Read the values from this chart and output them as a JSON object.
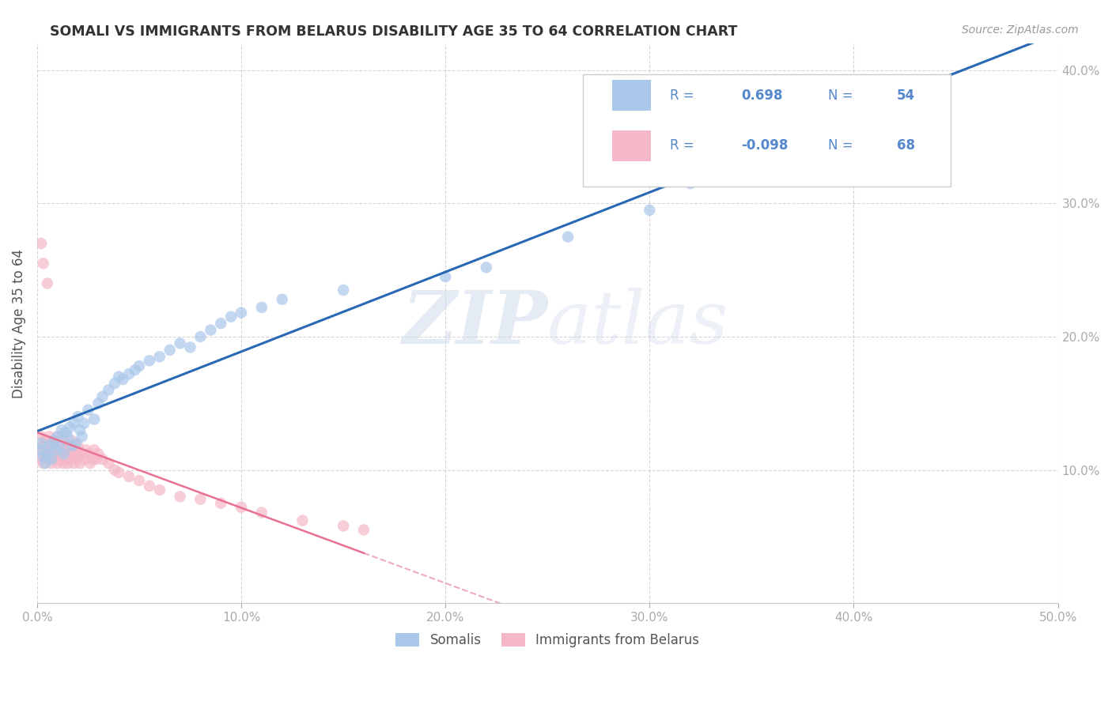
{
  "title": "SOMALI VS IMMIGRANTS FROM BELARUS DISABILITY AGE 35 TO 64 CORRELATION CHART",
  "source": "Source: ZipAtlas.com",
  "ylabel": "Disability Age 35 to 64",
  "xlim": [
    0.0,
    0.5
  ],
  "ylim": [
    0.0,
    0.42
  ],
  "xticks": [
    0.0,
    0.1,
    0.2,
    0.3,
    0.4,
    0.5
  ],
  "yticks": [
    0.0,
    0.1,
    0.2,
    0.3,
    0.4
  ],
  "xticklabels": [
    "0.0%",
    "10.0%",
    "20.0%",
    "30.0%",
    "40.0%",
    "50.0%"
  ],
  "yticklabels_right": [
    "",
    "10.0%",
    "20.0%",
    "30.0%",
    "40.0%"
  ],
  "somali_R": 0.698,
  "somali_N": 54,
  "belarus_R": -0.098,
  "belarus_N": 68,
  "somali_color": "#aac8ea",
  "belarus_color": "#f5b8c8",
  "somali_line_color": "#2868b4",
  "belarus_line_color": "#e87090",
  "watermark_zip": "ZIP",
  "watermark_atlas": "atlas",
  "background_color": "#ffffff",
  "grid_color": "#cccccc",
  "somali_x": [
    0.001,
    0.002,
    0.003,
    0.004,
    0.005,
    0.006,
    0.007,
    0.008,
    0.009,
    0.01,
    0.011,
    0.012,
    0.013,
    0.014,
    0.015,
    0.016,
    0.017,
    0.018,
    0.019,
    0.02,
    0.021,
    0.022,
    0.023,
    0.025,
    0.028,
    0.03,
    0.032,
    0.035,
    0.038,
    0.04,
    0.042,
    0.045,
    0.048,
    0.05,
    0.055,
    0.06,
    0.065,
    0.07,
    0.075,
    0.08,
    0.085,
    0.09,
    0.095,
    0.1,
    0.11,
    0.12,
    0.15,
    0.2,
    0.22,
    0.26,
    0.3,
    0.32,
    0.37,
    0.42
  ],
  "somali_y": [
    0.115,
    0.12,
    0.11,
    0.105,
    0.112,
    0.118,
    0.108,
    0.122,
    0.115,
    0.125,
    0.118,
    0.13,
    0.112,
    0.128,
    0.125,
    0.132,
    0.118,
    0.135,
    0.12,
    0.14,
    0.13,
    0.125,
    0.135,
    0.145,
    0.138,
    0.15,
    0.155,
    0.16,
    0.165,
    0.17,
    0.168,
    0.172,
    0.175,
    0.178,
    0.182,
    0.185,
    0.19,
    0.195,
    0.192,
    0.2,
    0.205,
    0.21,
    0.215,
    0.218,
    0.222,
    0.228,
    0.235,
    0.245,
    0.252,
    0.275,
    0.295,
    0.315,
    0.33,
    0.355
  ],
  "belarus_x": [
    0.001,
    0.002,
    0.002,
    0.003,
    0.003,
    0.004,
    0.004,
    0.005,
    0.005,
    0.006,
    0.006,
    0.007,
    0.007,
    0.008,
    0.008,
    0.009,
    0.009,
    0.01,
    0.01,
    0.011,
    0.011,
    0.012,
    0.012,
    0.013,
    0.013,
    0.014,
    0.014,
    0.015,
    0.015,
    0.016,
    0.016,
    0.017,
    0.017,
    0.018,
    0.018,
    0.019,
    0.019,
    0.02,
    0.02,
    0.021,
    0.022,
    0.023,
    0.024,
    0.025,
    0.026,
    0.027,
    0.028,
    0.029,
    0.03,
    0.032,
    0.035,
    0.038,
    0.04,
    0.045,
    0.05,
    0.055,
    0.06,
    0.07,
    0.08,
    0.09,
    0.1,
    0.11,
    0.13,
    0.15,
    0.16,
    0.002,
    0.003,
    0.005
  ],
  "belarus_y": [
    0.115,
    0.108,
    0.125,
    0.105,
    0.118,
    0.11,
    0.122,
    0.108,
    0.118,
    0.112,
    0.125,
    0.105,
    0.115,
    0.108,
    0.122,
    0.11,
    0.118,
    0.105,
    0.125,
    0.108,
    0.115,
    0.112,
    0.118,
    0.105,
    0.125,
    0.108,
    0.118,
    0.112,
    0.105,
    0.118,
    0.108,
    0.115,
    0.122,
    0.105,
    0.118,
    0.108,
    0.115,
    0.11,
    0.118,
    0.105,
    0.112,
    0.108,
    0.115,
    0.112,
    0.105,
    0.108,
    0.115,
    0.108,
    0.112,
    0.108,
    0.105,
    0.1,
    0.098,
    0.095,
    0.092,
    0.088,
    0.085,
    0.08,
    0.078,
    0.075,
    0.072,
    0.068,
    0.062,
    0.058,
    0.055,
    0.27,
    0.255,
    0.24
  ]
}
